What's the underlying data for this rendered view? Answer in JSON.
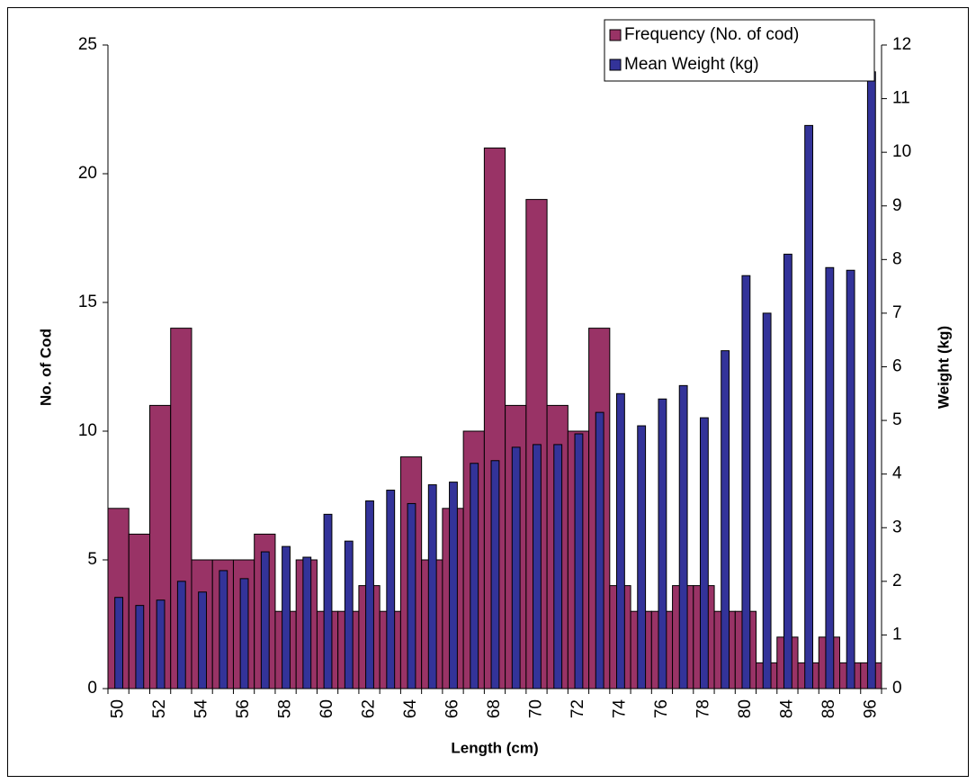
{
  "chart_data": {
    "type": "bar",
    "x_label": "Length (cm)",
    "y_label": "No. of Cod",
    "y2_label": "Weight (kg)",
    "categories": [
      "50",
      null,
      "52",
      null,
      "54",
      null,
      "56",
      null,
      "58",
      null,
      "60",
      null,
      "62",
      null,
      "64",
      null,
      "66",
      null,
      "68",
      null,
      "70",
      null,
      "72",
      null,
      "74",
      null,
      "76",
      null,
      "78",
      null,
      "80",
      null,
      "84",
      null,
      "88",
      null,
      "96"
    ],
    "series": [
      {
        "name": "Frequency (No. of cod)",
        "color": "#993366",
        "axis": "y",
        "values": [
          7,
          6,
          11,
          14,
          5,
          5,
          5,
          6,
          3,
          5,
          3,
          3,
          4,
          3,
          9,
          5,
          7,
          10,
          21,
          11,
          19,
          11,
          10,
          14,
          4,
          3,
          3,
          4,
          4,
          3,
          3,
          1,
          2,
          1,
          2,
          1,
          1
        ]
      },
      {
        "name": "Mean Weight (kg)",
        "color": "#333399",
        "axis": "y2",
        "values": [
          1.7,
          1.55,
          1.65,
          2.0,
          1.8,
          2.2,
          2.05,
          2.55,
          2.65,
          2.45,
          3.25,
          2.75,
          3.5,
          3.7,
          3.45,
          3.8,
          3.85,
          4.2,
          4.25,
          4.5,
          4.55,
          4.55,
          4.75,
          5.15,
          5.5,
          4.9,
          5.4,
          5.65,
          5.05,
          6.3,
          7.7,
          7.0,
          8.1,
          10.5,
          7.85,
          7.8,
          11.5
        ]
      }
    ],
    "ylim": [
      0,
      25
    ],
    "yticks": [
      0,
      5,
      10,
      15,
      20,
      25
    ],
    "y2lim": [
      0,
      12
    ],
    "y2ticks": [
      0,
      1,
      2,
      3,
      4,
      5,
      6,
      7,
      8,
      9,
      10,
      11,
      12
    ],
    "grid": false,
    "legend": "top-right"
  }
}
